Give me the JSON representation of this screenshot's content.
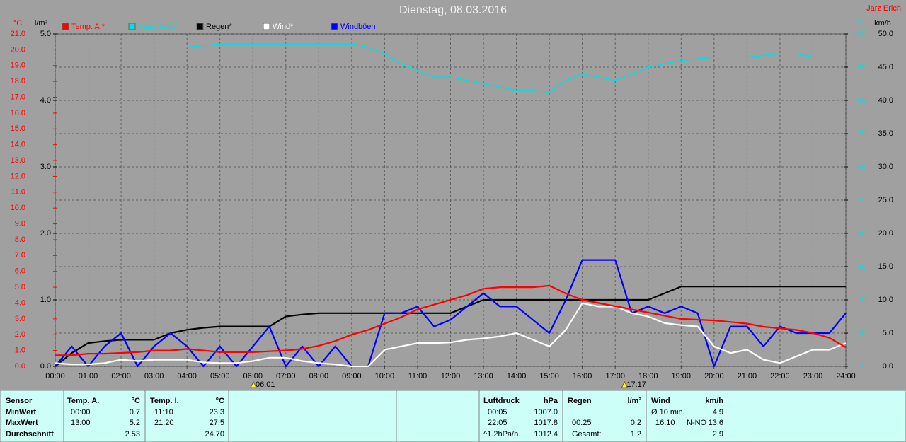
{
  "chart_data": {
    "type": "line",
    "title": "Dienstag, 08.03.2016",
    "credit": "Jarz Erich",
    "ylabel": "°C",
    "y2label": "l/m²",
    "y3label": "%",
    "y4label": "km/h",
    "xlim": [
      0,
      24
    ],
    "xticks": [
      {
        "value": 0,
        "label": "00:00"
      },
      {
        "value": 1,
        "label": "01:00"
      },
      {
        "value": 2,
        "label": "02:00"
      },
      {
        "value": 3,
        "label": "03:00"
      },
      {
        "value": 4,
        "label": "04:00"
      },
      {
        "value": 5,
        "label": "05:00"
      },
      {
        "value": 6,
        "label": "06:00"
      },
      {
        "value": 7,
        "label": "07:00"
      },
      {
        "value": 8,
        "label": "08:00"
      },
      {
        "value": 9,
        "label": "09:00"
      },
      {
        "value": 10,
        "label": "10:00"
      },
      {
        "value": 11,
        "label": "11:00"
      },
      {
        "value": 12,
        "label": "12:00"
      },
      {
        "value": 13,
        "label": "13:00"
      },
      {
        "value": 14,
        "label": "14:00"
      },
      {
        "value": 15,
        "label": "15:00"
      },
      {
        "value": 16,
        "label": "16:00"
      },
      {
        "value": 17,
        "label": "17:00"
      },
      {
        "value": 18,
        "label": "18:00"
      },
      {
        "value": 19,
        "label": "19:00"
      },
      {
        "value": 20,
        "label": "20:00"
      },
      {
        "value": 21,
        "label": "21:00"
      },
      {
        "value": 22,
        "label": "22:00"
      },
      {
        "value": 23,
        "label": "23:00"
      },
      {
        "value": 24,
        "label": "24:00"
      }
    ],
    "ylim": [
      0,
      21
    ],
    "yticks": [
      {
        "value": 0,
        "label": "0.0"
      },
      {
        "value": 1,
        "label": "1.0"
      },
      {
        "value": 2,
        "label": "2.0"
      },
      {
        "value": 3,
        "label": "3.0"
      },
      {
        "value": 4,
        "label": "4.0"
      },
      {
        "value": 5,
        "label": "5.0"
      },
      {
        "value": 6,
        "label": "6.0"
      },
      {
        "value": 7,
        "label": "7.0"
      },
      {
        "value": 8,
        "label": "8.0"
      },
      {
        "value": 9,
        "label": "9.0"
      },
      {
        "value": 10,
        "label": "10.0"
      },
      {
        "value": 11,
        "label": "11.0"
      },
      {
        "value": 12,
        "label": "12.0"
      },
      {
        "value": 13,
        "label": "13.0"
      },
      {
        "value": 14,
        "label": "14.0"
      },
      {
        "value": 15,
        "label": "15.0"
      },
      {
        "value": 16,
        "label": "16.0"
      },
      {
        "value": 17,
        "label": "17.0"
      },
      {
        "value": 18,
        "label": "18.0"
      },
      {
        "value": 19,
        "label": "19.0"
      },
      {
        "value": 20,
        "label": "20.0"
      },
      {
        "value": 21,
        "label": "21.0"
      }
    ],
    "y2lim": [
      0,
      5
    ],
    "y2ticks": [
      {
        "value": 0,
        "label": "0.0"
      },
      {
        "value": 1,
        "label": "1.0"
      },
      {
        "value": 2,
        "label": "2.0"
      },
      {
        "value": 3,
        "label": "3.0"
      },
      {
        "value": 4,
        "label": "4.0"
      },
      {
        "value": 5,
        "label": "5.0"
      }
    ],
    "y3lim": [
      0,
      100
    ],
    "y3ticks": [
      0,
      10,
      20,
      30,
      40,
      50,
      60,
      70,
      80,
      90,
      100
    ],
    "y4lim": [
      0,
      50
    ],
    "y4ticks": [
      {
        "value": 0,
        "label": "0.0"
      },
      {
        "value": 5,
        "label": "5.0"
      },
      {
        "value": 10,
        "label": "10.0"
      },
      {
        "value": 15,
        "label": "15.0"
      },
      {
        "value": 20,
        "label": "20.0"
      },
      {
        "value": 25,
        "label": "25.0"
      },
      {
        "value": 30,
        "label": "30.0"
      },
      {
        "value": 35,
        "label": "35.0"
      },
      {
        "value": 40,
        "label": "40.0"
      },
      {
        "value": 45,
        "label": "45.0"
      },
      {
        "value": 50,
        "label": "50.0"
      }
    ],
    "grid": true,
    "x": [
      0,
      0.5,
      1,
      1.5,
      2,
      2.5,
      3,
      3.5,
      4,
      4.5,
      5,
      5.5,
      6,
      6.5,
      7,
      7.5,
      8,
      8.5,
      9,
      9.5,
      10,
      10.5,
      11,
      11.5,
      12,
      12.5,
      13,
      13.5,
      14,
      14.5,
      15,
      15.5,
      16,
      16.5,
      17,
      17.5,
      18,
      18.5,
      19,
      19.5,
      20,
      20.5,
      21,
      21.5,
      22,
      22.5,
      23,
      23.5,
      24
    ],
    "series": [
      {
        "name": "Temp. A.*",
        "color": "#ff0000",
        "axis": "y",
        "values": [
          0.7,
          0.7,
          0.8,
          0.8,
          0.85,
          0.9,
          1.0,
          1.0,
          1.1,
          1.0,
          0.9,
          0.9,
          0.9,
          0.95,
          1.0,
          1.1,
          1.3,
          1.6,
          2.0,
          2.3,
          2.7,
          3.1,
          3.6,
          3.9,
          4.2,
          4.5,
          4.9,
          5.0,
          5.0,
          5.0,
          5.1,
          4.6,
          4.2,
          4.0,
          3.8,
          3.6,
          3.4,
          3.2,
          3.0,
          2.95,
          2.9,
          2.8,
          2.7,
          2.5,
          2.4,
          2.3,
          2.1,
          1.8,
          1.2
        ]
      },
      {
        "name": "Feuchte A.*",
        "color": "#00e0e0",
        "axis": "y3",
        "values": [
          96,
          96,
          96,
          96,
          96,
          96,
          96,
          96,
          96,
          96.5,
          97,
          97,
          97,
          97,
          97,
          97,
          97,
          97,
          97,
          96,
          94,
          91,
          89,
          87,
          87,
          86,
          85,
          84,
          83,
          83,
          82.5,
          86,
          88,
          87,
          86,
          88,
          90,
          91,
          92,
          92.5,
          93,
          93,
          93,
          93.5,
          94,
          94,
          93,
          93,
          93
        ]
      },
      {
        "name": "Regen*",
        "color": "#000000",
        "axis": "y2",
        "values": [
          0,
          0.2,
          0.35,
          0.38,
          0.4,
          0.4,
          0.4,
          0.5,
          0.55,
          0.58,
          0.6,
          0.6,
          0.6,
          0.6,
          0.75,
          0.78,
          0.8,
          0.8,
          0.8,
          0.8,
          0.8,
          0.8,
          0.8,
          0.8,
          0.8,
          0.9,
          1.0,
          1.0,
          1.0,
          1.0,
          1.0,
          1.0,
          1.0,
          1.0,
          1.0,
          1.0,
          1.0,
          1.1,
          1.2,
          1.2,
          1.2,
          1.2,
          1.2,
          1.2,
          1.2,
          1.2,
          1.2,
          1.2,
          1.2
        ]
      },
      {
        "name": "Wind*",
        "color": "#ffffff",
        "axis": "y4",
        "values": [
          0.5,
          0.3,
          0.3,
          0.5,
          1.0,
          0.8,
          1.0,
          1.0,
          1.0,
          0.6,
          0.5,
          0.5,
          0.8,
          1.3,
          1.3,
          0.8,
          0.5,
          0.3,
          0,
          0,
          2.5,
          3.0,
          3.5,
          3.5,
          3.6,
          4.0,
          4.2,
          4.5,
          5.0,
          4.0,
          3.0,
          5.5,
          9.5,
          9.0,
          9.0,
          8.0,
          7.5,
          6.5,
          6.2,
          6.0,
          3.0,
          2.0,
          2.5,
          1.0,
          0.5,
          1.5,
          2.5,
          2.5,
          3.5
        ]
      },
      {
        "name": "Windböen",
        "color": "#0000ff",
        "axis": "y4",
        "values": [
          0,
          3,
          0,
          3,
          5,
          0,
          3,
          5,
          3,
          0,
          3,
          0,
          3,
          6,
          0,
          3,
          0,
          3,
          0,
          0,
          8,
          8,
          9,
          6,
          7,
          9,
          11,
          9,
          9,
          7,
          5,
          10,
          16,
          16,
          16,
          8,
          9,
          8,
          9,
          8,
          0,
          6,
          6,
          3,
          6,
          5,
          5,
          5,
          8
        ]
      }
    ],
    "sun_events": [
      {
        "value": 6.0167,
        "label": "06:01"
      },
      {
        "value": 17.2833,
        "label": "17:17"
      }
    ]
  },
  "stats": {
    "row_labels": [
      "Sensor",
      "MinWert",
      "MaxWert",
      "Durchschnitt"
    ],
    "columns": [
      {
        "header": "Temp. A.",
        "unit": "°C",
        "rows": [
          {
            "time": "00:00",
            "value": "0.7"
          },
          {
            "time": "13:00",
            "value": "5.2"
          },
          {
            "value": "2.53"
          }
        ]
      },
      {
        "header": "Temp. I.",
        "unit": "°C",
        "rows": [
          {
            "time": "11:10",
            "value": "23.3"
          },
          {
            "time": "21:20",
            "value": "27.5"
          },
          {
            "value": "24.70"
          }
        ]
      },
      {
        "header": "Luftdruck",
        "unit": "hPa",
        "rows": [
          {
            "time": "00:05",
            "value": "1007.0"
          },
          {
            "time": "22:05",
            "value": "1017.8"
          },
          {
            "time": "^1.2hPa/h",
            "value": "1012.4"
          }
        ]
      },
      {
        "header": "Regen",
        "unit": "l/m²",
        "rows": [
          null,
          {
            "time": "00:25",
            "value": "0.2"
          },
          {
            "time": "Gesamt:",
            "value": "1.2"
          }
        ]
      },
      {
        "header": "Wind",
        "unit": "km/h",
        "rows": [
          {
            "time": "Ø 10 min.",
            "value": "4.9"
          },
          {
            "time": "16:10",
            "extra": "N-NO",
            "value": "13.6"
          },
          {
            "value": "2.9"
          }
        ]
      }
    ]
  }
}
